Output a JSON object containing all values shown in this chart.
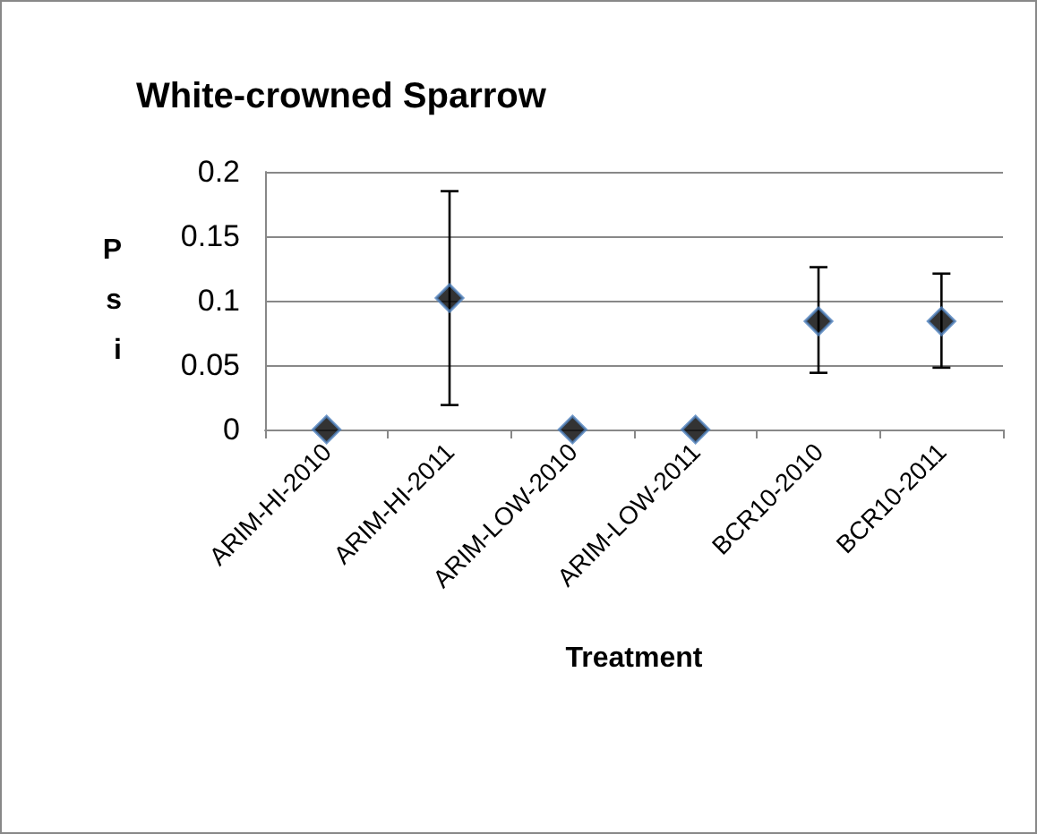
{
  "chart_data": {
    "type": "scatter",
    "title": "White-crowned Sparrow",
    "xlabel": "Treatment",
    "ylabel": "Psi",
    "categories": [
      "ARIM-HI-2010",
      "ARIM-HI-2011",
      "ARIM-LOW-2010",
      "ARIM-LOW-2011",
      "BCR10-2010",
      "BCR10-2011"
    ],
    "values": [
      0,
      0.102,
      0,
      0,
      0.084,
      0.084
    ],
    "errors": [
      null,
      [
        0.019,
        0.185
      ],
      null,
      null,
      [
        0.044,
        0.126
      ],
      [
        0.048,
        0.121
      ]
    ],
    "color": "#000000",
    "marker": "diamond",
    "ylim": [
      0,
      0.2
    ],
    "yticks": [
      0,
      0.05,
      0.1,
      0.15,
      0.2
    ],
    "grid": "y"
  }
}
